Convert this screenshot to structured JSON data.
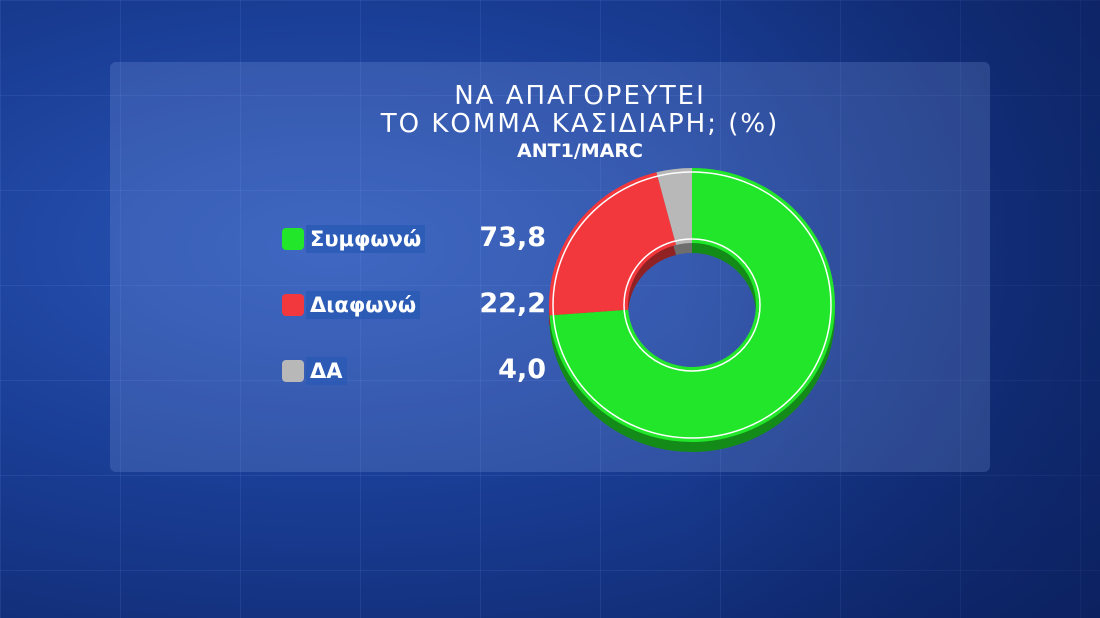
{
  "chart_data": {
    "type": "pie",
    "variant": "donut",
    "title": "ΝΑ ΑΠΑΓΟΡΕΥΤΕΙ",
    "title_line2": "ΤΟ ΚΟΜΜΑ ΚΑΣΙΔΙΑΡΗ; (%)",
    "subtitle": "ANT1/MARC",
    "legend_placement": "left",
    "slices": [
      {
        "label": "Συμφωνώ",
        "value": 73.8,
        "display": "73,8",
        "color": "#22e62a"
      },
      {
        "label": "Διαφωνώ",
        "value": 22.2,
        "display": "22,2",
        "color": "#f2383c"
      },
      {
        "label": "ΔΑ",
        "value": 4.0,
        "display": "4,0",
        "color": "#b8b8b8"
      }
    ]
  }
}
